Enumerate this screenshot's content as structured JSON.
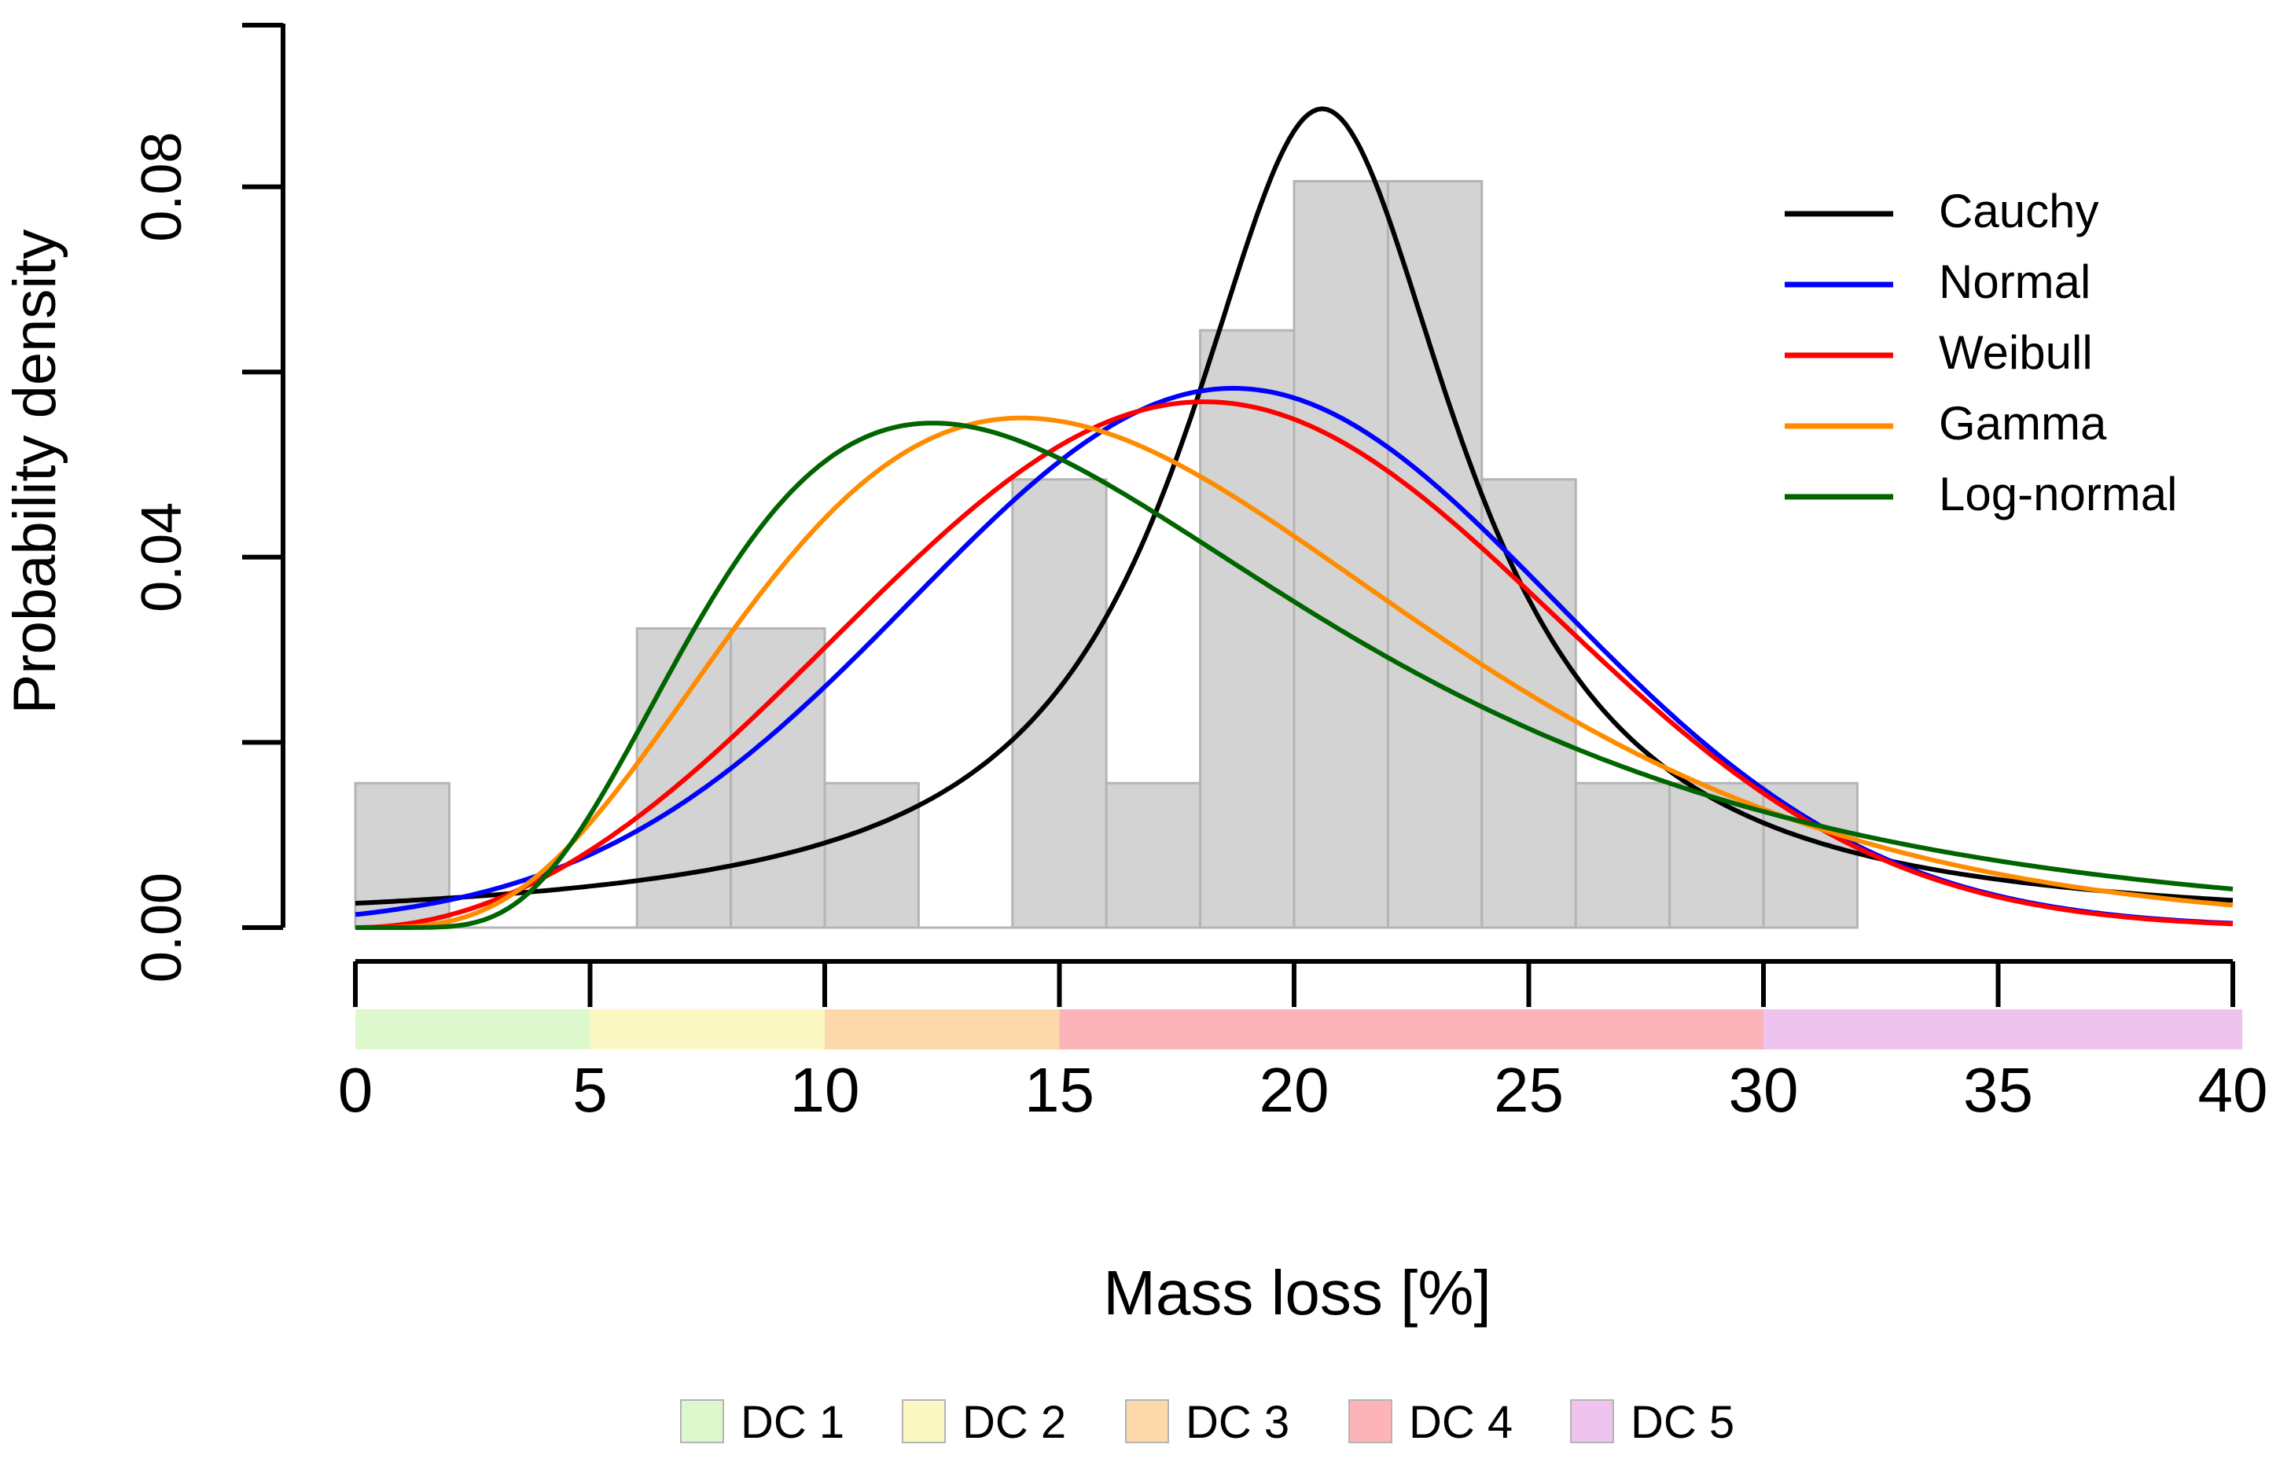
{
  "chart_data": {
    "type": "histogram",
    "title": "",
    "xlabel": "Mass loss [%]",
    "ylabel": "Probability density",
    "xlim": [
      0,
      40
    ],
    "ylim": [
      0,
      0.1
    ],
    "x_ticks": [
      "0",
      "5",
      "10",
      "15",
      "20",
      "25",
      "30",
      "35",
      "40"
    ],
    "y_ticks": [
      "0.00",
      "0.04",
      "0.08"
    ],
    "bins": [
      {
        "start": 0,
        "end": 2,
        "density": 0.0156
      },
      {
        "start": 2,
        "end": 4,
        "density": 0.0
      },
      {
        "start": 4,
        "end": 6,
        "density": 0.0
      },
      {
        "start": 6,
        "end": 8,
        "density": 0.0323
      },
      {
        "start": 8,
        "end": 10,
        "density": 0.0323
      },
      {
        "start": 10,
        "end": 12,
        "density": 0.0156
      },
      {
        "start": 12,
        "end": 14,
        "density": 0.0
      },
      {
        "start": 14,
        "end": 16,
        "density": 0.0484
      },
      {
        "start": 16,
        "end": 18,
        "density": 0.0156
      },
      {
        "start": 18,
        "end": 20,
        "density": 0.0645
      },
      {
        "start": 20,
        "end": 22,
        "density": 0.0806
      },
      {
        "start": 22,
        "end": 24,
        "density": 0.0806
      },
      {
        "start": 24,
        "end": 26,
        "density": 0.0484
      },
      {
        "start": 26,
        "end": 28,
        "density": 0.0156
      },
      {
        "start": 28,
        "end": 30,
        "density": 0.0156
      },
      {
        "start": 30,
        "end": 32,
        "density": 0.0156
      }
    ],
    "series": [
      {
        "name": "Cauchy",
        "color": "#000000",
        "distribution": "cauchy",
        "params": {
          "location": 20.6,
          "scale": 3.6
        }
      },
      {
        "name": "Normal",
        "color": "#0000ff",
        "distribution": "normal",
        "params": {
          "mean": 18.7,
          "sd": 6.85
        }
      },
      {
        "name": "Weibull",
        "color": "#ff0000",
        "distribution": "weibull",
        "params": {
          "shape": 3.0,
          "scale": 20.7
        }
      },
      {
        "name": "Gamma",
        "color": "#ff8c00",
        "distribution": "gamma",
        "params": {
          "shape": 5.0,
          "scale": 3.55
        }
      },
      {
        "name": "Log-normal",
        "color": "#006400",
        "distribution": "lognormal",
        "params": {
          "meanlog": 2.78,
          "sdlog": 0.52
        }
      }
    ],
    "damage_classes": [
      {
        "label": "DC 1",
        "from": 0,
        "to": 5,
        "color": "#dcf8cc"
      },
      {
        "label": "DC 2",
        "from": 5,
        "to": 10,
        "color": "#fbf8c4"
      },
      {
        "label": "DC 3",
        "from": 10,
        "to": 15,
        "color": "#fdd8aa"
      },
      {
        "label": "DC 4",
        "from": 15,
        "to": 30,
        "color": "#fdb4b8"
      },
      {
        "label": "DC 5",
        "from": 30,
        "to": 40,
        "color": "#eec3ee"
      }
    ],
    "legend_position": "top-right"
  }
}
